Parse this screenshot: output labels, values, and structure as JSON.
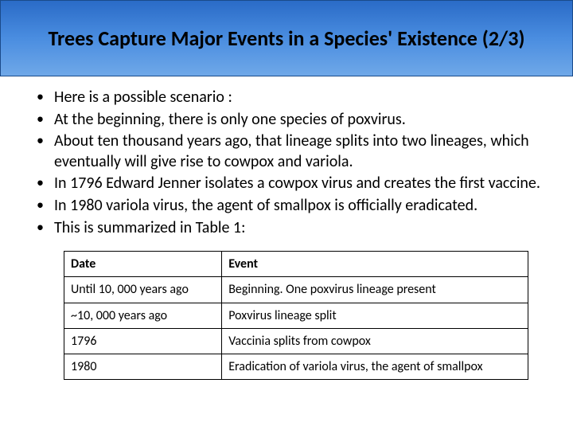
{
  "title": "Trees Capture Major Events in a Species' Existence (2/3)",
  "bullets": [
    "Here is a possible scenario :",
    "At the beginning, there is only one species of poxvirus.",
    "About ten thousand years ago, that lineage splits into two lineages, which eventually will give rise to cowpox and variola.",
    "In 1796 Edward Jenner isolates a cowpox virus and creates the first vaccine.",
    "In 1980 variola virus, the agent of smallpox is officially eradicated.",
    "This is summarized in Table 1:"
  ],
  "table": {
    "columns": [
      "Date",
      "Event"
    ],
    "rows": [
      [
        "Until 10, 000 years ago",
        "Beginning. One poxvirus lineage present"
      ],
      [
        "~10, 000 years ago",
        "Poxvirus lineage split"
      ],
      [
        "1796",
        "Vaccinia splits from cowpox"
      ],
      [
        "1980",
        "Eradication of variola virus, the agent of smallpox"
      ]
    ],
    "col_widths_pct": [
      34,
      66
    ],
    "border_color": "#000000",
    "header_fontweight": 700,
    "cell_fontsize": 16
  },
  "styling": {
    "title_gradient": [
      "#2a6bc7",
      "#4a8de0",
      "#6fa8e8"
    ],
    "title_border": "#1a4a8a",
    "title_fontsize": 26,
    "title_fontweight": 700,
    "title_color": "#000000",
    "bullet_fontsize": 20,
    "bullet_color": "#000000",
    "background_color": "#ffffff",
    "font_family": "Calibri"
  }
}
